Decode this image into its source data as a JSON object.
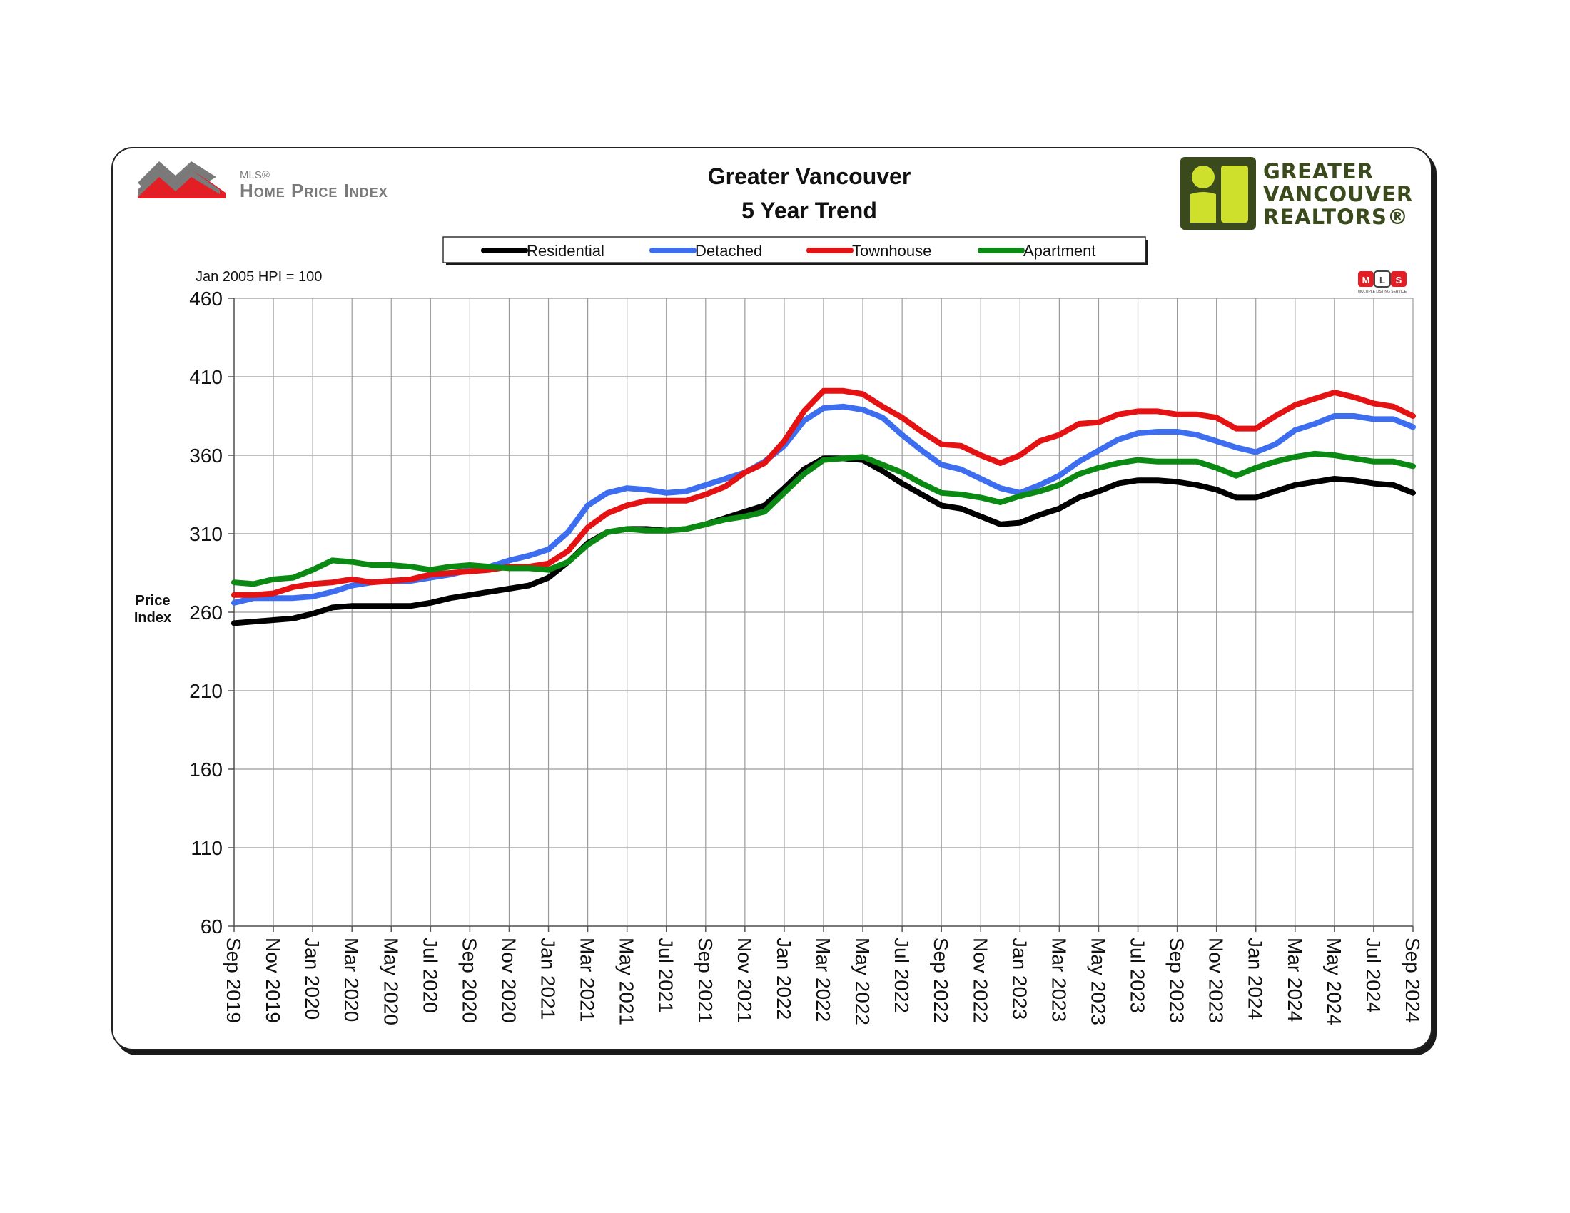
{
  "header": {
    "hpi_logo": {
      "sup": "MLS®",
      "main": "Home Price Index"
    },
    "title_line1": "Greater Vancouver",
    "title_line2": "5 Year Trend",
    "board_logo": {
      "line1": "GREATER",
      "line2": "VANCOUVER",
      "line3": "REALTORS®"
    },
    "mls_badge": "MLS",
    "mls_badge_sub": "MULTIPLE LISTING SERVICE"
  },
  "note": "Jan 2005 HPI = 100",
  "colors": {
    "Residential": "#000000",
    "Detached": "#3d6ef0",
    "Townhouse": "#e41212",
    "Apartment": "#0a8a12",
    "hpi_logo_red": "#e31e24",
    "hpi_logo_grey": "#7a7a7a",
    "board_logo_green": "#cfe02c",
    "board_logo_dark": "#3a4a1c"
  },
  "chart_data": {
    "type": "line",
    "title": "Greater Vancouver 5 Year Trend",
    "ylabel": "Price Index",
    "ylim": [
      60,
      460
    ],
    "yticks": [
      60,
      110,
      160,
      210,
      260,
      310,
      360,
      410,
      460
    ],
    "grid": true,
    "legend": "top-center",
    "x": [
      "Sep 2019",
      "Oct 2019",
      "Nov 2019",
      "Dec 2019",
      "Jan 2020",
      "Feb 2020",
      "Mar 2020",
      "Apr 2020",
      "May 2020",
      "Jun 2020",
      "Jul 2020",
      "Aug 2020",
      "Sep 2020",
      "Oct 2020",
      "Nov 2020",
      "Dec 2020",
      "Jan 2021",
      "Feb 2021",
      "Mar 2021",
      "Apr 2021",
      "May 2021",
      "Jun 2021",
      "Jul 2021",
      "Aug 2021",
      "Sep 2021",
      "Oct 2021",
      "Nov 2021",
      "Dec 2021",
      "Jan 2022",
      "Feb 2022",
      "Mar 2022",
      "Apr 2022",
      "May 2022",
      "Jun 2022",
      "Jul 2022",
      "Aug 2022",
      "Sep 2022",
      "Oct 2022",
      "Nov 2022",
      "Dec 2022",
      "Jan 2023",
      "Feb 2023",
      "Mar 2023",
      "Apr 2023",
      "May 2023",
      "Jun 2023",
      "Jul 2023",
      "Aug 2023",
      "Sep 2023",
      "Oct 2023",
      "Nov 2023",
      "Dec 2023",
      "Jan 2024",
      "Feb 2024",
      "Mar 2024",
      "Apr 2024",
      "May 2024",
      "Jun 2024",
      "Jul 2024",
      "Aug 2024",
      "Sep 2024"
    ],
    "xticks": [
      "Sep 2019",
      "Nov 2019",
      "Jan 2020",
      "Mar 2020",
      "May 2020",
      "Jul 2020",
      "Sep 2020",
      "Nov 2020",
      "Jan 2021",
      "Mar 2021",
      "May 2021",
      "Jul 2021",
      "Sep 2021",
      "Nov 2021",
      "Jan 2022",
      "Mar 2022",
      "May 2022",
      "Jul 2022",
      "Sep 2022",
      "Nov 2022",
      "Jan 2023",
      "Mar 2023",
      "May 2023",
      "Jul 2023",
      "Sep 2023",
      "Nov 2023",
      "Jan 2024",
      "Mar 2024",
      "May 2024",
      "Jul 2024",
      "Sep 2024"
    ],
    "series": [
      {
        "name": "Residential",
        "values": [
          253,
          254,
          255,
          256,
          259,
          263,
          264,
          264,
          264,
          264,
          266,
          269,
          271,
          273,
          275,
          277,
          282,
          292,
          304,
          311,
          313,
          313,
          312,
          313,
          316,
          320,
          324,
          328,
          339,
          351,
          358,
          358,
          357,
          350,
          342,
          335,
          328,
          326,
          321,
          316,
          317,
          322,
          326,
          333,
          337,
          342,
          344,
          344,
          343,
          341,
          338,
          333,
          333,
          337,
          341,
          343,
          345,
          344,
          342,
          341,
          336
        ]
      },
      {
        "name": "Detached",
        "values": [
          266,
          269,
          269,
          269,
          270,
          273,
          277,
          279,
          280,
          280,
          282,
          284,
          287,
          289,
          293,
          296,
          300,
          311,
          328,
          336,
          339,
          338,
          336,
          337,
          341,
          345,
          349,
          356,
          366,
          382,
          390,
          391,
          389,
          384,
          373,
          363,
          354,
          351,
          345,
          339,
          336,
          341,
          347,
          356,
          363,
          370,
          374,
          375,
          375,
          373,
          369,
          365,
          362,
          367,
          376,
          380,
          385,
          385,
          383,
          383,
          378
        ]
      },
      {
        "name": "Townhouse",
        "values": [
          271,
          271,
          272,
          276,
          278,
          279,
          281,
          279,
          280,
          281,
          284,
          285,
          286,
          287,
          289,
          289,
          291,
          299,
          314,
          323,
          328,
          331,
          331,
          331,
          335,
          340,
          349,
          355,
          369,
          388,
          401,
          401,
          399,
          391,
          384,
          375,
          367,
          366,
          360,
          355,
          360,
          369,
          373,
          380,
          381,
          386,
          388,
          388,
          386,
          386,
          384,
          377,
          377,
          385,
          392,
          396,
          400,
          397,
          393,
          391,
          385
        ]
      },
      {
        "name": "Apartment",
        "values": [
          279,
          278,
          281,
          282,
          287,
          293,
          292,
          290,
          290,
          289,
          287,
          289,
          290,
          289,
          288,
          288,
          287,
          292,
          303,
          311,
          313,
          312,
          312,
          313,
          316,
          319,
          321,
          324,
          336,
          348,
          357,
          358,
          359,
          354,
          349,
          342,
          336,
          335,
          333,
          330,
          334,
          337,
          341,
          348,
          352,
          355,
          357,
          356,
          356,
          356,
          352,
          347,
          352,
          356,
          359,
          361,
          360,
          358,
          356,
          356,
          353
        ]
      }
    ]
  }
}
